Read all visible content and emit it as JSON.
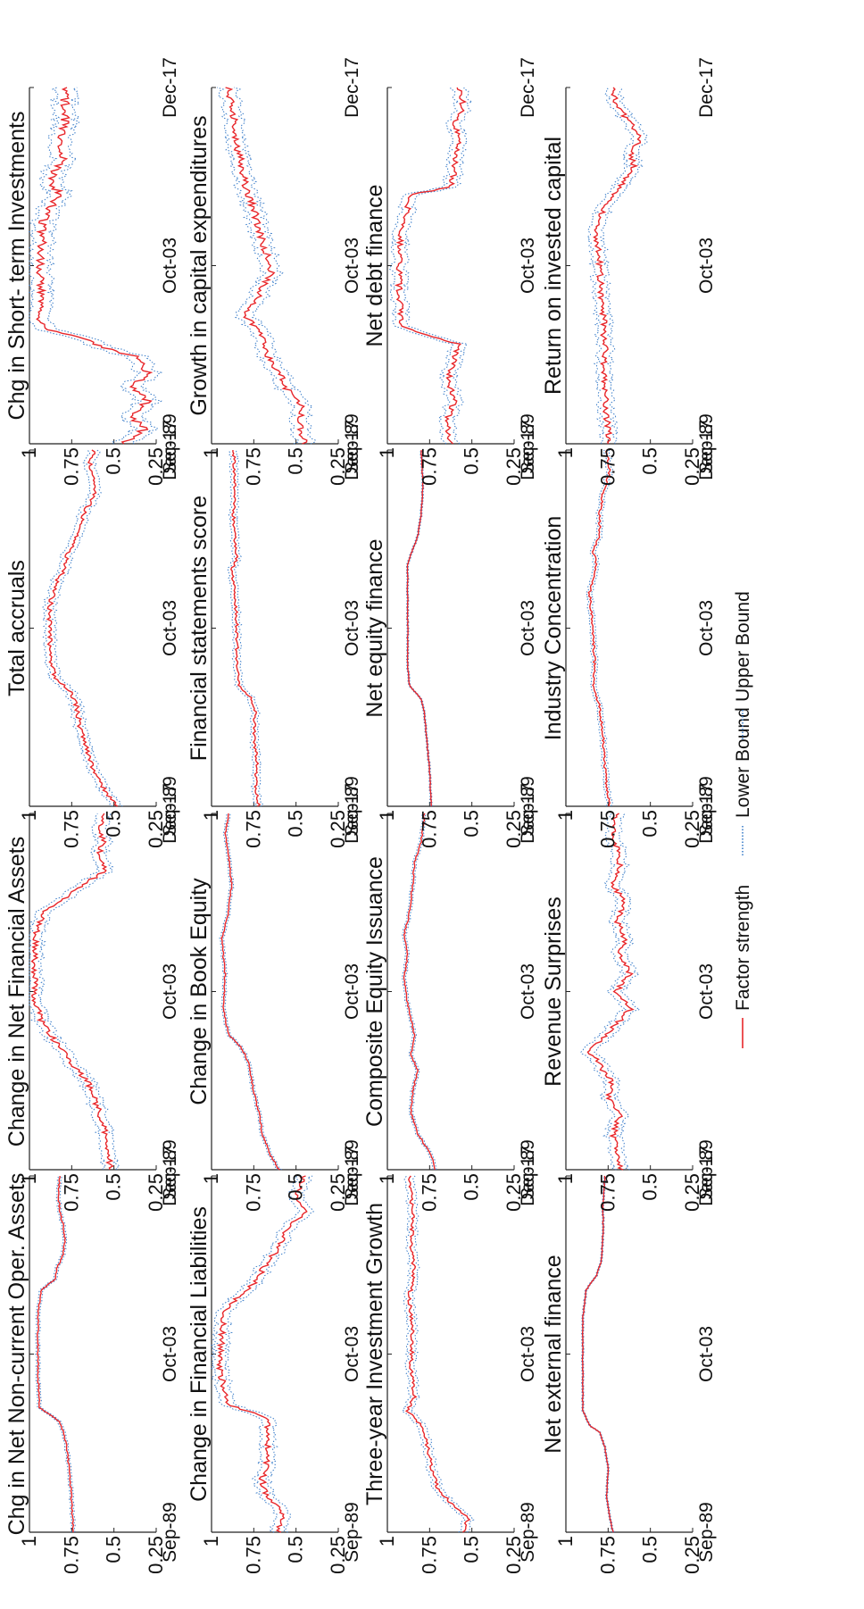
{
  "figure": {
    "legend": [
      {
        "label": "Factor strength",
        "color": "#e8262a",
        "style": "solid"
      },
      {
        "label": "Lower Bound",
        "color": "#3a7dc9",
        "style": "dotted"
      },
      {
        "label": "Upper Bound",
        "color": "#3a7dc9",
        "style": "dotted"
      }
    ]
  },
  "chart_data": [
    {
      "type": "line",
      "title": "Chg in Net Non-current Oper. Assets",
      "x_ticks": [
        "Sep-89",
        "Oct-03",
        "Dec-17"
      ],
      "y_ticks": [
        "1",
        "0.75",
        "0.5",
        "0.25"
      ],
      "ylim": [
        0.25,
        1
      ],
      "band": 0.01,
      "series": [
        {
          "name": "Factor strength",
          "x": [
            0,
            0.08,
            0.16,
            0.24,
            0.28,
            0.31,
            0.35,
            0.45,
            0.62,
            0.68,
            0.71,
            0.74,
            0.78,
            0.82,
            0.86,
            0.9,
            0.95,
            1.0
          ],
          "values": [
            0.74,
            0.75,
            0.76,
            0.78,
            0.8,
            0.82,
            0.94,
            0.95,
            0.95,
            0.93,
            0.85,
            0.84,
            0.8,
            0.79,
            0.8,
            0.82,
            0.83,
            0.82
          ]
        }
      ]
    },
    {
      "type": "line",
      "title": "Change in Net Financial Assets",
      "x_ticks": [
        "Sep-89",
        "Oct-03",
        "Dec-17"
      ],
      "y_ticks": [
        "1",
        "0.75",
        "0.5",
        "0.25"
      ],
      "ylim": [
        0.25,
        1
      ],
      "band": 0.04,
      "series": [
        {
          "name": "Factor strength",
          "x": [
            0,
            0.06,
            0.12,
            0.18,
            0.24,
            0.3,
            0.36,
            0.42,
            0.48,
            0.6,
            0.66,
            0.72,
            0.76,
            0.8,
            0.84,
            0.88,
            0.92,
            0.96,
            1.0
          ],
          "values": [
            0.52,
            0.54,
            0.56,
            0.6,
            0.65,
            0.75,
            0.85,
            0.93,
            0.97,
            0.97,
            0.96,
            0.92,
            0.8,
            0.68,
            0.55,
            0.6,
            0.56,
            0.58,
            0.55
          ]
        }
      ]
    },
    {
      "type": "line",
      "title": "Total accruals",
      "x_ticks": [
        "Sep-89",
        "Oct-03",
        "Dec-17"
      ],
      "y_ticks": [
        "1",
        "0.75",
        "0.5",
        "0.25"
      ],
      "ylim": [
        0.25,
        1
      ],
      "band": 0.03,
      "series": [
        {
          "name": "Factor strength",
          "x": [
            0,
            0.04,
            0.1,
            0.16,
            0.22,
            0.28,
            0.32,
            0.36,
            0.42,
            0.56,
            0.62,
            0.66,
            0.7,
            0.76,
            0.82,
            0.86,
            0.9,
            0.95,
            1.0
          ],
          "values": [
            0.48,
            0.55,
            0.62,
            0.66,
            0.7,
            0.72,
            0.75,
            0.85,
            0.88,
            0.88,
            0.85,
            0.8,
            0.78,
            0.72,
            0.68,
            0.63,
            0.6,
            0.65,
            0.62
          ]
        }
      ]
    },
    {
      "type": "line",
      "title": "Chg in Short- term Investments",
      "x_ticks": [
        "Sep-89",
        "Oct-03",
        "Dec-17"
      ],
      "y_ticks": [
        "1",
        "0.75",
        "0.5",
        "0.25"
      ],
      "ylim": [
        0.25,
        1
      ],
      "band": 0.06,
      "series": [
        {
          "name": "Factor strength",
          "x": [
            0,
            0.04,
            0.08,
            0.12,
            0.16,
            0.2,
            0.24,
            0.27,
            0.3,
            0.32,
            0.36,
            0.5,
            0.62,
            0.66,
            0.7,
            0.74,
            0.8,
            0.86,
            0.92,
            1.0
          ],
          "values": [
            0.45,
            0.32,
            0.4,
            0.3,
            0.38,
            0.3,
            0.35,
            0.55,
            0.7,
            0.9,
            0.94,
            0.93,
            0.92,
            0.88,
            0.82,
            0.88,
            0.8,
            0.82,
            0.78,
            0.8
          ]
        }
      ]
    },
    {
      "type": "line",
      "title": "Change in Financial Liabilities",
      "x_ticks": [
        "Sep-89",
        "Oct-03",
        "Dec-17"
      ],
      "y_ticks": [
        "1",
        "0.75",
        "0.5",
        "0.25"
      ],
      "ylim": [
        0.25,
        1
      ],
      "band": 0.04,
      "series": [
        {
          "name": "Factor strength",
          "x": [
            0,
            0.06,
            0.1,
            0.15,
            0.2,
            0.28,
            0.32,
            0.36,
            0.45,
            0.55,
            0.62,
            0.66,
            0.7,
            0.75,
            0.8,
            0.85,
            0.9,
            0.95,
            1.0
          ],
          "values": [
            0.6,
            0.58,
            0.68,
            0.7,
            0.67,
            0.66,
            0.68,
            0.9,
            0.95,
            0.94,
            0.92,
            0.85,
            0.75,
            0.68,
            0.6,
            0.55,
            0.45,
            0.5,
            0.45
          ]
        }
      ]
    },
    {
      "type": "line",
      "title": "Change in Book Equity",
      "x_ticks": [
        "Sep-89",
        "Oct-03",
        "Dec-17"
      ],
      "y_ticks": [
        "1",
        "0.75",
        "0.5",
        "0.25"
      ],
      "ylim": [
        0.25,
        1
      ],
      "band": 0.01,
      "series": [
        {
          "name": "Factor strength",
          "x": [
            0,
            0.04,
            0.1,
            0.16,
            0.22,
            0.3,
            0.34,
            0.38,
            0.45,
            0.55,
            0.65,
            0.72,
            0.8,
            0.88,
            0.94,
            1.0
          ],
          "values": [
            0.6,
            0.65,
            0.7,
            0.72,
            0.75,
            0.78,
            0.82,
            0.9,
            0.93,
            0.92,
            0.94,
            0.9,
            0.88,
            0.9,
            0.92,
            0.9
          ]
        }
      ]
    },
    {
      "type": "line",
      "title": "Financial statements score",
      "x_ticks": [
        "Sep-89",
        "Oct-03",
        "Dec-17"
      ],
      "y_ticks": [
        "1",
        "0.75",
        "0.5",
        "0.25"
      ],
      "ylim": [
        0.25,
        1
      ],
      "band": 0.02,
      "series": [
        {
          "name": "Factor strength",
          "x": [
            0,
            0.06,
            0.12,
            0.2,
            0.26,
            0.3,
            0.34,
            0.4,
            0.5,
            0.6,
            0.66,
            0.7,
            0.75,
            0.82,
            0.9,
            1.0
          ],
          "values": [
            0.72,
            0.74,
            0.73,
            0.75,
            0.74,
            0.76,
            0.84,
            0.85,
            0.85,
            0.86,
            0.88,
            0.85,
            0.86,
            0.87,
            0.86,
            0.87
          ]
        }
      ]
    },
    {
      "type": "line",
      "title": "Growth in capital expenditures",
      "x_ticks": [
        "Sep-89",
        "Oct-03",
        "Dec-17"
      ],
      "y_ticks": [
        "1",
        "0.75",
        "0.5",
        "0.25"
      ],
      "ylim": [
        0.25,
        1
      ],
      "band": 0.05,
      "series": [
        {
          "name": "Factor strength",
          "x": [
            0,
            0.05,
            0.1,
            0.15,
            0.2,
            0.26,
            0.32,
            0.36,
            0.42,
            0.48,
            0.54,
            0.6,
            0.66,
            0.72,
            0.78,
            0.84,
            0.9,
            0.95,
            1.0
          ],
          "values": [
            0.45,
            0.48,
            0.46,
            0.55,
            0.6,
            0.68,
            0.72,
            0.8,
            0.72,
            0.65,
            0.68,
            0.72,
            0.75,
            0.8,
            0.82,
            0.85,
            0.86,
            0.88,
            0.9
          ]
        }
      ]
    },
    {
      "type": "line",
      "title": "Three-year Investment Growth",
      "x_ticks": [
        "Sep-89",
        "Oct-03",
        "Dec-17"
      ],
      "y_ticks": [
        "1",
        "0.75",
        "0.5",
        "0.25"
      ],
      "ylim": [
        0.25,
        1
      ],
      "band": 0.025,
      "series": [
        {
          "name": "Factor strength",
          "x": [
            0,
            0.04,
            0.08,
            0.12,
            0.18,
            0.24,
            0.3,
            0.34,
            0.38,
            0.46,
            0.56,
            0.66,
            0.74,
            0.8,
            0.88,
            0.94,
            1.0
          ],
          "values": [
            0.55,
            0.52,
            0.62,
            0.7,
            0.74,
            0.76,
            0.8,
            0.88,
            0.84,
            0.86,
            0.85,
            0.87,
            0.84,
            0.86,
            0.85,
            0.86,
            0.87
          ]
        }
      ]
    },
    {
      "type": "line",
      "title": "Composite Equity Issuance",
      "x_ticks": [
        "Sep-89",
        "Oct-03",
        "Dec-17"
      ],
      "y_ticks": [
        "1",
        "0.75",
        "0.5",
        "0.25"
      ],
      "ylim": [
        0.25,
        1
      ],
      "band": 0.01,
      "series": [
        {
          "name": "Factor strength",
          "x": [
            0,
            0.04,
            0.1,
            0.16,
            0.22,
            0.28,
            0.32,
            0.38,
            0.46,
            0.54,
            0.6,
            0.66,
            0.72,
            0.8,
            0.86,
            0.92,
            1.0
          ],
          "values": [
            0.72,
            0.74,
            0.82,
            0.86,
            0.85,
            0.82,
            0.86,
            0.84,
            0.88,
            0.9,
            0.88,
            0.9,
            0.87,
            0.85,
            0.84,
            0.8,
            0.78
          ]
        }
      ]
    },
    {
      "type": "line",
      "title": "Net equity finance",
      "x_ticks": [
        "Sep-89",
        "Oct-03",
        "Dec-17"
      ],
      "y_ticks": [
        "1",
        "0.75",
        "0.5",
        "0.25"
      ],
      "ylim": [
        0.25,
        1
      ],
      "band": 0.005,
      "series": [
        {
          "name": "Factor strength",
          "x": [
            0,
            0.1,
            0.2,
            0.26,
            0.3,
            0.34,
            0.4,
            0.5,
            0.6,
            0.68,
            0.72,
            0.76,
            0.82,
            0.9,
            1.0
          ],
          "values": [
            0.74,
            0.75,
            0.77,
            0.78,
            0.8,
            0.87,
            0.88,
            0.88,
            0.88,
            0.88,
            0.85,
            0.82,
            0.8,
            0.79,
            0.8
          ]
        }
      ]
    },
    {
      "type": "line",
      "title": "Net debt finance",
      "x_ticks": [
        "Sep-89",
        "Oct-03",
        "Dec-17"
      ],
      "y_ticks": [
        "1",
        "0.75",
        "0.5",
        "0.25"
      ],
      "ylim": [
        0.25,
        1
      ],
      "band": 0.04,
      "series": [
        {
          "name": "Factor strength",
          "x": [
            0,
            0.06,
            0.12,
            0.18,
            0.24,
            0.28,
            0.3,
            0.33,
            0.45,
            0.6,
            0.66,
            0.7,
            0.72,
            0.78,
            0.84,
            0.9,
            0.95,
            1.0
          ],
          "values": [
            0.62,
            0.65,
            0.6,
            0.64,
            0.6,
            0.58,
            0.72,
            0.92,
            0.93,
            0.92,
            0.88,
            0.86,
            0.62,
            0.6,
            0.58,
            0.6,
            0.55,
            0.58
          ]
        }
      ]
    },
    {
      "type": "line",
      "title": "Net external finance",
      "x_ticks": [
        "Sep-89",
        "Oct-03",
        "Dec-17"
      ],
      "y_ticks": [
        "1",
        "0.75",
        "0.5",
        "0.25"
      ],
      "ylim": [
        0.25,
        1
      ],
      "band": 0.005,
      "series": [
        {
          "name": "Factor strength",
          "x": [
            0,
            0.04,
            0.1,
            0.18,
            0.24,
            0.28,
            0.3,
            0.34,
            0.45,
            0.6,
            0.68,
            0.72,
            0.76,
            0.84,
            0.92,
            1.0
          ],
          "values": [
            0.72,
            0.74,
            0.76,
            0.75,
            0.77,
            0.8,
            0.86,
            0.9,
            0.9,
            0.9,
            0.88,
            0.82,
            0.79,
            0.78,
            0.78,
            0.77
          ]
        }
      ]
    },
    {
      "type": "line",
      "title": "Revenue Surprises",
      "x_ticks": [
        "Sep-89",
        "Oct-03",
        "Dec-17"
      ],
      "y_ticks": [
        "1",
        "0.75",
        "0.5",
        "0.25"
      ],
      "ylim": [
        0.25,
        1
      ],
      "band": 0.04,
      "series": [
        {
          "name": "Factor strength",
          "x": [
            0,
            0.05,
            0.1,
            0.15,
            0.2,
            0.24,
            0.28,
            0.3,
            0.33,
            0.36,
            0.4,
            0.45,
            0.5,
            0.55,
            0.6,
            0.65,
            0.7,
            0.75,
            0.8,
            0.85,
            0.9,
            0.95,
            1.0
          ],
          "values": [
            0.68,
            0.7,
            0.72,
            0.68,
            0.75,
            0.72,
            0.78,
            0.8,
            0.86,
            0.8,
            0.72,
            0.62,
            0.7,
            0.62,
            0.68,
            0.65,
            0.7,
            0.65,
            0.72,
            0.68,
            0.7,
            0.72,
            0.7
          ]
        }
      ]
    },
    {
      "type": "line",
      "title": "Industry Concentration",
      "x_ticks": [
        "Sep-89",
        "Oct-03",
        "Dec-17"
      ],
      "y_ticks": [
        "1",
        "0.75",
        "0.5",
        "0.25"
      ],
      "ylim": [
        0.25,
        1
      ],
      "band": 0.015,
      "series": [
        {
          "name": "Factor strength",
          "x": [
            0,
            0.06,
            0.12,
            0.2,
            0.28,
            0.34,
            0.4,
            0.5,
            0.6,
            0.68,
            0.72,
            0.76,
            0.82,
            0.88,
            0.94,
            1.0
          ],
          "values": [
            0.74,
            0.76,
            0.77,
            0.78,
            0.8,
            0.84,
            0.83,
            0.84,
            0.86,
            0.82,
            0.84,
            0.8,
            0.8,
            0.78,
            0.74,
            0.76
          ]
        }
      ]
    },
    {
      "type": "line",
      "title": "Return on invested capital",
      "x_ticks": [
        "Sep-89",
        "Oct-03",
        "Dec-17"
      ],
      "y_ticks": [
        "1",
        "0.75",
        "0.5",
        "0.25"
      ],
      "ylim": [
        0.25,
        1
      ],
      "band": 0.04,
      "series": [
        {
          "name": "Factor strength",
          "x": [
            0,
            0.08,
            0.16,
            0.22,
            0.26,
            0.3,
            0.34,
            0.4,
            0.5,
            0.6,
            0.66,
            0.7,
            0.74,
            0.78,
            0.82,
            0.85,
            0.9,
            0.95,
            1.0
          ],
          "values": [
            0.74,
            0.76,
            0.77,
            0.78,
            0.76,
            0.78,
            0.77,
            0.79,
            0.8,
            0.82,
            0.78,
            0.72,
            0.65,
            0.6,
            0.62,
            0.55,
            0.62,
            0.7,
            0.72
          ]
        }
      ]
    }
  ]
}
